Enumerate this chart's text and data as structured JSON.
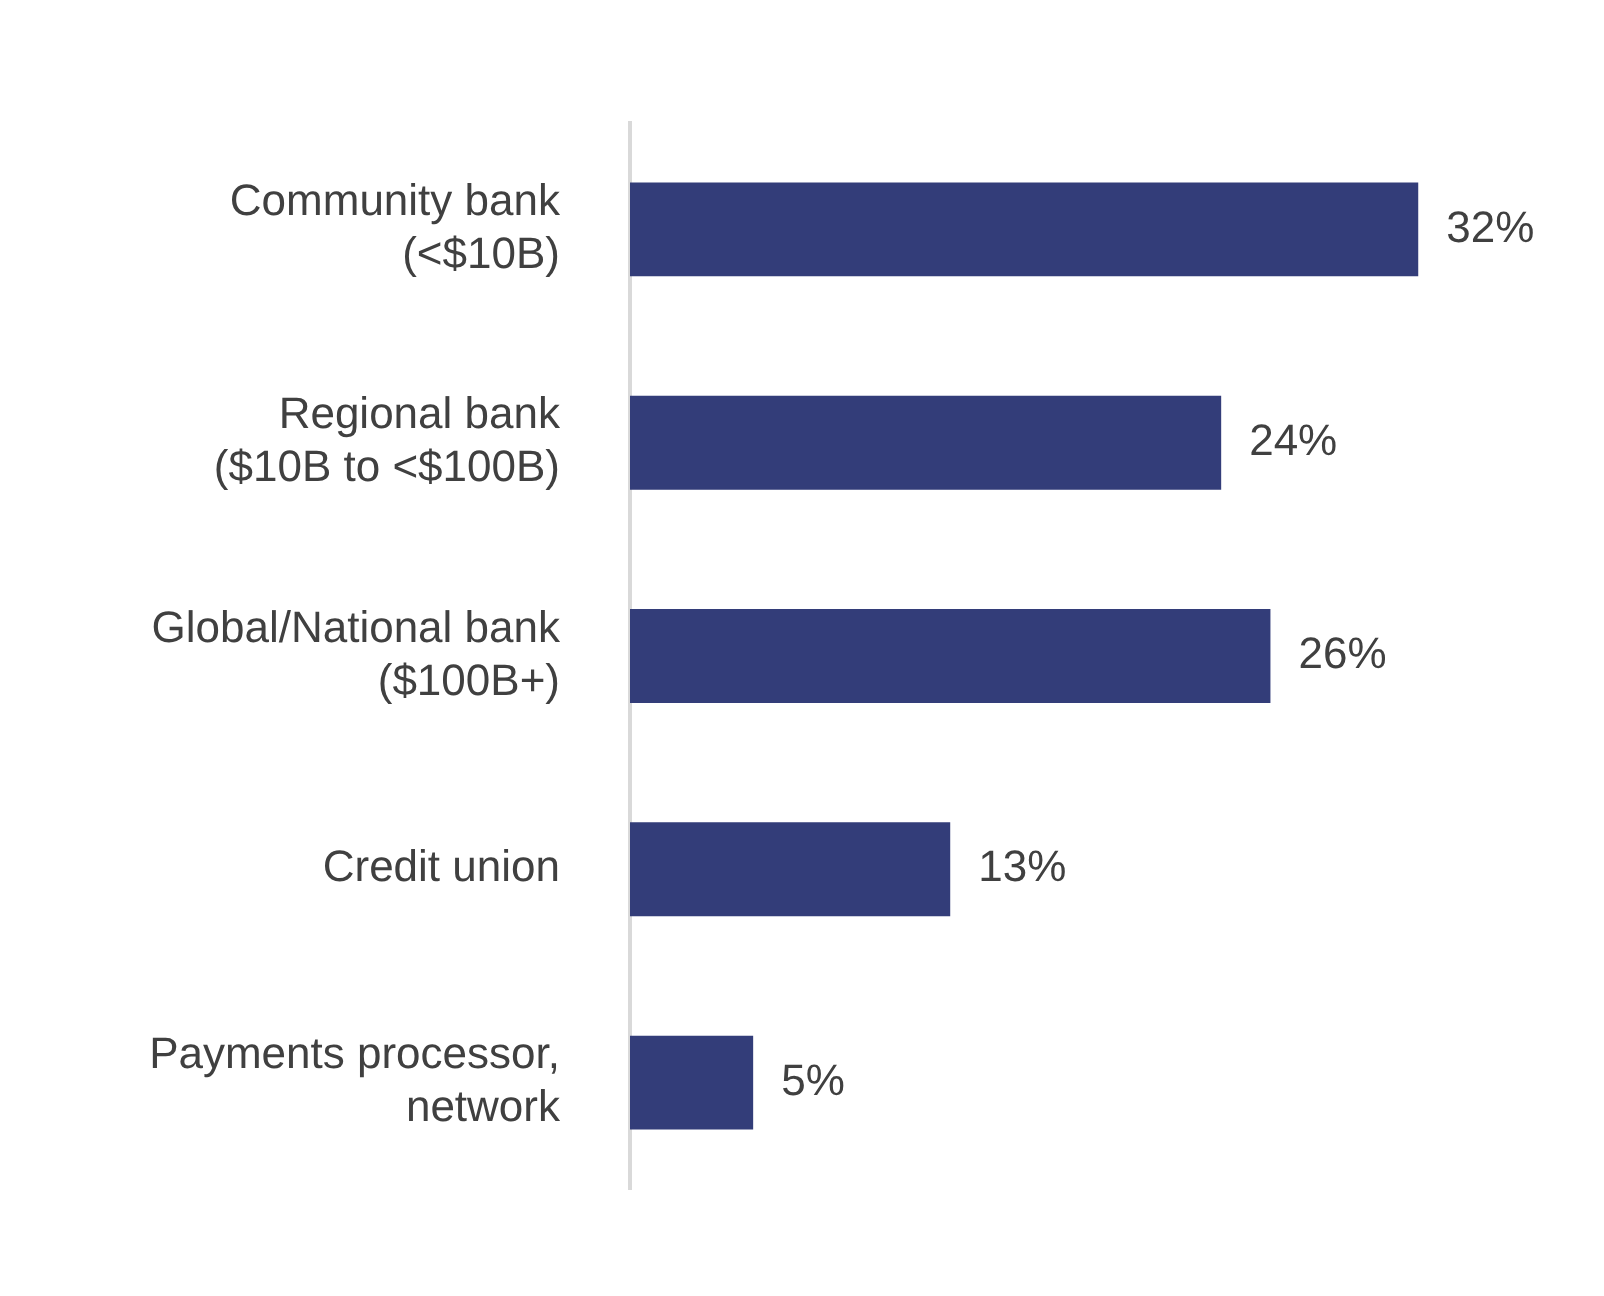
{
  "chart_data": {
    "type": "bar",
    "orientation": "horizontal",
    "categories": [
      "Community bank\n(<$10B)",
      "Regional bank\n($10B to <$100B)",
      "Global/National bank\n($100B+)",
      "Credit union",
      "Payments processor,\nnetwork"
    ],
    "values": [
      32,
      24,
      26,
      13,
      5
    ],
    "value_labels": [
      "32%",
      "24%",
      "26%",
      "13%",
      "5%"
    ],
    "color": "#333d79",
    "grid": false,
    "legend": false
  }
}
